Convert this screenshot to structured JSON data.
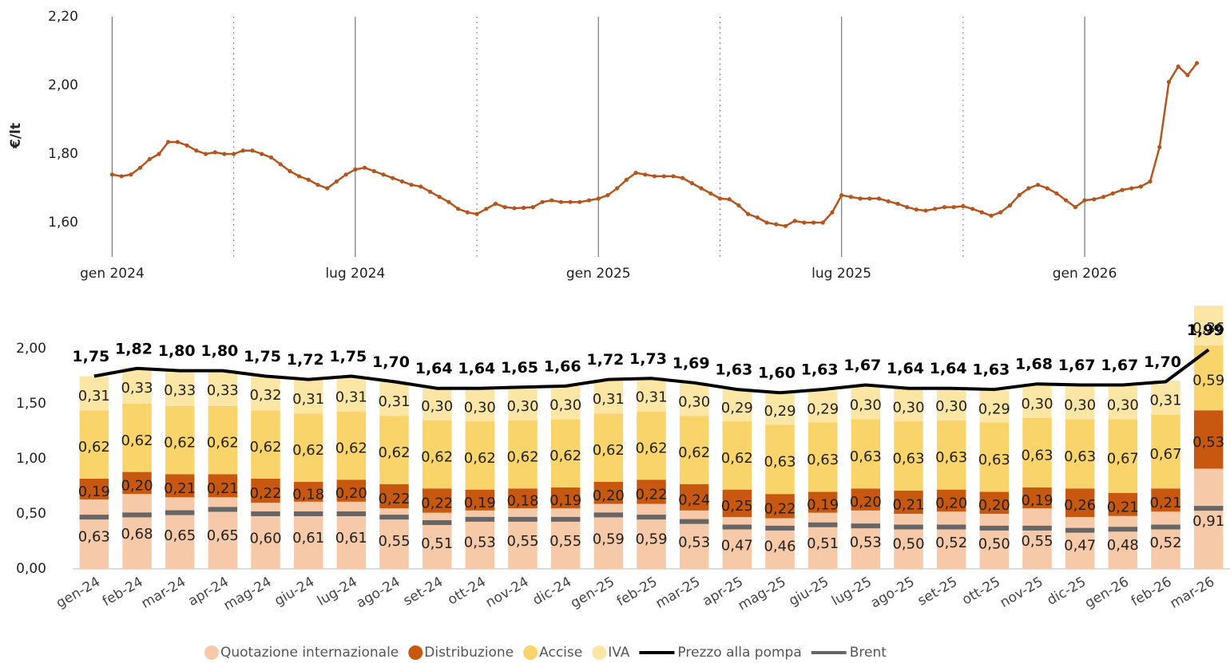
{
  "chart_data": [
    {
      "type": "line",
      "y_label": "€/lt",
      "color": "#b5551d",
      "values": [
        1.74,
        1.735,
        1.74,
        1.76,
        1.785,
        1.8,
        1.835,
        1.835,
        1.825,
        1.81,
        1.8,
        1.805,
        1.8,
        1.8,
        1.81,
        1.81,
        1.8,
        1.79,
        1.77,
        1.75,
        1.735,
        1.725,
        1.71,
        1.7,
        1.72,
        1.74,
        1.755,
        1.76,
        1.75,
        1.74,
        1.73,
        1.72,
        1.71,
        1.705,
        1.69,
        1.675,
        1.66,
        1.64,
        1.63,
        1.625,
        1.64,
        1.655,
        1.645,
        1.642,
        1.643,
        1.645,
        1.66,
        1.665,
        1.66,
        1.66,
        1.66,
        1.665,
        1.67,
        1.68,
        1.7,
        1.725,
        1.745,
        1.74,
        1.735,
        1.735,
        1.735,
        1.73,
        1.715,
        1.7,
        1.685,
        1.67,
        1.668,
        1.65,
        1.625,
        1.615,
        1.6,
        1.595,
        1.59,
        1.605,
        1.6,
        1.6,
        1.6,
        1.63,
        1.68,
        1.675,
        1.67,
        1.67,
        1.67,
        1.662,
        1.655,
        1.645,
        1.638,
        1.635,
        1.64,
        1.645,
        1.645,
        1.648,
        1.64,
        1.63,
        1.62,
        1.63,
        1.65,
        1.68,
        1.7,
        1.71,
        1.7,
        1.685,
        1.665,
        1.645,
        1.665,
        1.668,
        1.675,
        1.685,
        1.695,
        1.7,
        1.705,
        1.72,
        1.82,
        2.01,
        2.055,
        2.03,
        2.065
      ],
      "xlim": [
        -2,
        118
      ],
      "xticks": [
        {
          "value": 0,
          "label": "gen 2024"
        },
        {
          "value": 26,
          "label": "lug 2024"
        },
        {
          "value": 52,
          "label": "gen 2025"
        },
        {
          "value": 78,
          "label": "lug 2025"
        },
        {
          "value": 104,
          "label": "gen 2026"
        }
      ],
      "x_minor_grid": [
        13,
        39,
        65,
        91
      ],
      "ylim": [
        1.5,
        2.2
      ],
      "yticks": [
        {
          "value": 1.6,
          "label": "1,60"
        },
        {
          "value": 1.8,
          "label": "1,80"
        },
        {
          "value": 2.0,
          "label": "2,00"
        },
        {
          "value": 2.2,
          "label": "2,20"
        }
      ]
    },
    {
      "type": "bar",
      "stacked": true,
      "categories": [
        "gen-24",
        "feb-24",
        "mar-24",
        "apr-24",
        "mag-24",
        "giu-24",
        "lug-24",
        "ago-24",
        "set-24",
        "ott-24",
        "nov-24",
        "dic-24",
        "gen-25",
        "feb-25",
        "mar-25",
        "apr-25",
        "mag-25",
        "giu-25",
        "lug-25",
        "ago-25",
        "set-25",
        "ott-25",
        "nov-25",
        "dic-25",
        "gen-26",
        "feb-26",
        "mar-26"
      ],
      "ylim": [
        0,
        2.2
      ],
      "yticks": [
        {
          "value": 0,
          "label": "0,00"
        },
        {
          "value": 0.5,
          "label": "0,50"
        },
        {
          "value": 1.0,
          "label": "1,00"
        },
        {
          "value": 1.5,
          "label": "1,50"
        },
        {
          "value": 2.0,
          "label": "2,00"
        }
      ],
      "series": [
        {
          "name": "Quotazione internazionale",
          "type": "bar",
          "color": "#f6c9a8",
          "values": [
            0.63,
            0.68,
            0.65,
            0.65,
            0.6,
            0.61,
            0.61,
            0.55,
            0.51,
            0.53,
            0.55,
            0.55,
            0.59,
            0.59,
            0.53,
            0.47,
            0.46,
            0.51,
            0.53,
            0.5,
            0.52,
            0.5,
            0.55,
            0.47,
            0.48,
            0.52,
            0.91
          ],
          "value_labels": [
            "0,63",
            "0,68",
            "0,65",
            "0,65",
            "0,60",
            "0,61",
            "0,61",
            "0,55",
            "0,51",
            "0,53",
            "0,55",
            "0,55",
            "0,59",
            "0,59",
            "0,53",
            "0,47",
            "0,46",
            "0,51",
            "0,53",
            "0,50",
            "0,52",
            "0,50",
            "0,55",
            "0,47",
            "0,48",
            "0,52",
            "0,91"
          ]
        },
        {
          "name": "Distribuzione",
          "type": "bar",
          "color": "#c8580f",
          "values": [
            0.19,
            0.2,
            0.21,
            0.21,
            0.22,
            0.18,
            0.2,
            0.22,
            0.22,
            0.19,
            0.18,
            0.19,
            0.2,
            0.22,
            0.24,
            0.25,
            0.22,
            0.19,
            0.2,
            0.21,
            0.2,
            0.2,
            0.19,
            0.26,
            0.21,
            0.21,
            0.53
          ],
          "value_labels": [
            "0,19",
            "0,20",
            "0,21",
            "0,21",
            "0,22",
            "0,18",
            "0,20",
            "0,22",
            "0,22",
            "0,19",
            "0,18",
            "0,19",
            "0,20",
            "0,22",
            "0,24",
            "0,25",
            "0,22",
            "0,19",
            "0,20",
            "0,21",
            "0,20",
            "0,20",
            "0,19",
            "0,26",
            "0,21",
            "0,21",
            "0,53"
          ]
        },
        {
          "name": "Accise",
          "type": "bar",
          "color": "#f9d46a",
          "values": [
            0.62,
            0.62,
            0.62,
            0.62,
            0.62,
            0.62,
            0.62,
            0.62,
            0.62,
            0.62,
            0.62,
            0.62,
            0.62,
            0.62,
            0.62,
            0.62,
            0.63,
            0.63,
            0.63,
            0.63,
            0.63,
            0.63,
            0.63,
            0.63,
            0.67,
            0.67,
            0.59
          ],
          "value_labels": [
            "0,62",
            "0,62",
            "0,62",
            "0,62",
            "0,62",
            "0,62",
            "0,62",
            "0,62",
            "0,62",
            "0,62",
            "0,62",
            "0,62",
            "0,62",
            "0,62",
            "0,62",
            "0,62",
            "0,63",
            "0,63",
            "0,63",
            "0,63",
            "0,63",
            "0,63",
            "0,63",
            "0,63",
            "0,67",
            "0,67",
            "0,59"
          ]
        },
        {
          "name": "IVA",
          "type": "bar",
          "color": "#fce6a6",
          "values": [
            0.31,
            0.33,
            0.33,
            0.33,
            0.32,
            0.31,
            0.31,
            0.31,
            0.3,
            0.3,
            0.3,
            0.3,
            0.31,
            0.31,
            0.3,
            0.29,
            0.29,
            0.29,
            0.3,
            0.3,
            0.3,
            0.29,
            0.3,
            0.3,
            0.3,
            0.31,
            0.36
          ],
          "value_labels": [
            "0,31",
            "0,33",
            "0,33",
            "0,33",
            "0,32",
            "0,31",
            "0,31",
            "0,31",
            "0,30",
            "0,30",
            "0,30",
            "0,30",
            "0,31",
            "0,31",
            "0,30",
            "0,29",
            "0,29",
            "0,29",
            "0,30",
            "0,30",
            "0,30",
            "0,29",
            "0,30",
            "0,30",
            "0,30",
            "0,31",
            "0,36"
          ]
        },
        {
          "name": "Prezzo alla pompa",
          "type": "line",
          "color": "#000000",
          "values": [
            1.75,
            1.82,
            1.8,
            1.8,
            1.75,
            1.72,
            1.75,
            1.7,
            1.64,
            1.64,
            1.65,
            1.66,
            1.72,
            1.73,
            1.69,
            1.63,
            1.6,
            1.63,
            1.67,
            1.64,
            1.64,
            1.63,
            1.68,
            1.67,
            1.67,
            1.7,
            1.99
          ],
          "value_labels": [
            "1,75",
            "1,82",
            "1,80",
            "1,80",
            "1,75",
            "1,72",
            "1,75",
            "1,70",
            "1,64",
            "1,64",
            "1,65",
            "1,66",
            "1,72",
            "1,73",
            "1,69",
            "1,63",
            "1,60",
            "1,63",
            "1,67",
            "1,64",
            "1,64",
            "1,63",
            "1,68",
            "1,67",
            "1,67",
            "1,70",
            "1,99"
          ]
        },
        {
          "name": "Brent",
          "type": "marker",
          "color": "#666666",
          "values": [
            0.47,
            0.49,
            0.51,
            0.54,
            0.5,
            0.5,
            0.5,
            0.47,
            0.42,
            0.45,
            0.45,
            0.45,
            0.49,
            0.47,
            0.43,
            0.38,
            0.37,
            0.4,
            0.39,
            0.38,
            0.38,
            0.37,
            0.37,
            0.35,
            0.36,
            0.38,
            0.55
          ]
        }
      ]
    }
  ]
}
